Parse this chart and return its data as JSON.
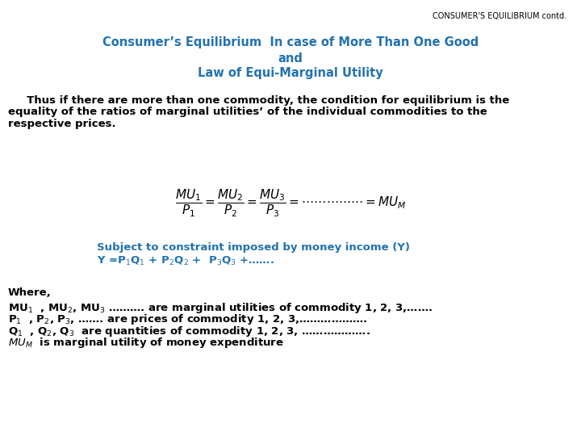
{
  "background_color": "#ffffff",
  "header_text": "CONSUMER'S EQUILIBRIUM contd.",
  "header_color": "#000000",
  "header_fontsize": 7,
  "title_line1": "Consumer’s Equilibrium  In case of More Than One Good",
  "title_line2": "and",
  "title_line3": "Law of Equi-Marginal Utility",
  "title_color": "#2272b0",
  "title_fontsize": 10.5,
  "body_text1": "     Thus if there are more than one commodity, the condition for equilibrium is the",
  "body_text2": "equality of the ratios of marginal utilities’ of the individual commodities to the",
  "body_text3": "respective prices.",
  "body_color": "#000000",
  "body_fontsize": 9.5,
  "formula": "$\\dfrac{MU_1}{P_1} = \\dfrac{MU_2}{P_2} = \\dfrac{MU_3}{P_3} = \\cdots \\cdots \\cdots \\cdots \\cdots = MU_M$",
  "formula_color": "#000000",
  "formula_fontsize": 11,
  "subject_line1": "Subject to constraint imposed by money income (Y)",
  "subject_line2": "Y =P$_1$Q$_1$ + P$_2$Q$_2$ +  P$_3$Q$_3$ +…….",
  "subject_color": "#2272b0",
  "subject_fontsize": 9.5,
  "where_title": "Where,",
  "where_color": "#000000",
  "where_fontsize": 9.5,
  "where_lines": [
    "MU$_1$  , MU$_2$, MU$_3$ ………. are marginal utilities of commodity 1, 2, 3,…….",
    "P$_1$  , P$_2$, P$_3$, ……. are prices of commodity 1, 2, 3,……………….",
    "Q$_1$  , Q$_2$, Q$_3$  are quantities of commodity 1, 2, 3, ……………….",
    "$MU_M$  is marginal utility of money expenditure"
  ]
}
